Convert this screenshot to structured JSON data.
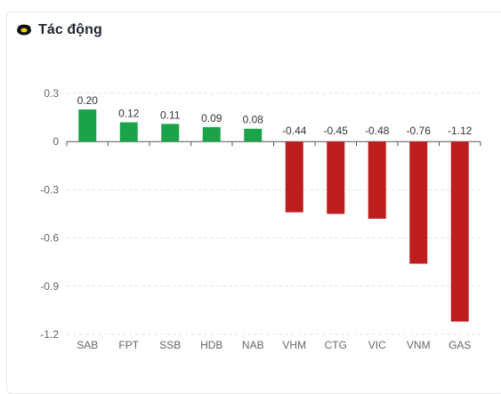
{
  "header": {
    "title": "Tác động",
    "icon": "swirl-logo-icon"
  },
  "colors": {
    "positive": "#1ba34a",
    "negative": "#be1e1e",
    "icon_ring": "#111111",
    "icon_center": "#f5d10a",
    "grid": "#e3e3e3",
    "axis": "#555555"
  },
  "chart_data": {
    "type": "bar",
    "title": "",
    "xlabel": "",
    "ylabel": "",
    "categories": [
      "SAB",
      "FPT",
      "SSB",
      "HDB",
      "NAB",
      "VHM",
      "CTG",
      "VIC",
      "VNM",
      "GAS"
    ],
    "values": [
      0.2,
      0.12,
      0.11,
      0.09,
      0.08,
      -0.44,
      -0.45,
      -0.48,
      -0.76,
      -1.12
    ],
    "data_labels": [
      "0.20",
      "0.12",
      "0.11",
      "0.09",
      "0.08",
      "-0.44",
      "-0.45",
      "-0.48",
      "-0.76",
      "-1.12"
    ],
    "yticks": [
      0.3,
      0,
      -0.3,
      -0.6,
      -0.9,
      -1.2
    ],
    "ytick_labels": [
      "0.3",
      "0",
      "-0.3",
      "-0.6",
      "-0.9",
      "-1.2"
    ],
    "ylim": [
      -1.2,
      0.3
    ],
    "grid": "horizontal dashed",
    "legend": "none"
  }
}
